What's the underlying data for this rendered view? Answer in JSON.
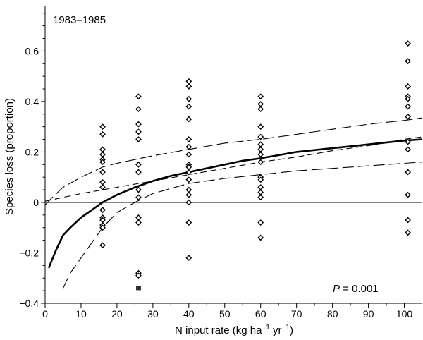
{
  "chart_data": {
    "type": "scatter",
    "title": "",
    "panel_label": "1983–1985",
    "xlabel": "N input rate (kg ha",
    "xlabel_sup1": "−1",
    "xlabel_mid": " yr",
    "xlabel_sup2": "−1",
    "xlabel_end": ")",
    "ylabel": "Species loss (proportion)",
    "xlim": [
      0,
      105
    ],
    "ylim": [
      -0.4,
      0.78
    ],
    "x_ticks": [
      0,
      10,
      20,
      30,
      40,
      50,
      60,
      70,
      80,
      90,
      100
    ],
    "y_ticks": [
      -0.4,
      -0.2,
      0,
      0.2,
      0.4,
      0.6
    ],
    "y_tick_labels": [
      "−0.4",
      "−0.2",
      "0",
      "0.2",
      "0.4",
      "0.6"
    ],
    "zero_line": true,
    "annotation": {
      "label": "P",
      "text": " = 0.001"
    },
    "series": [
      {
        "marker": "diamond",
        "points": [
          [
            16,
            0.3
          ],
          [
            16,
            0.27
          ],
          [
            16,
            0.21
          ],
          [
            16,
            0.19
          ],
          [
            16,
            0.17
          ],
          [
            16,
            0.16
          ],
          [
            16,
            0.12
          ],
          [
            16,
            0.08
          ],
          [
            16,
            0.06
          ],
          [
            16,
            -0.03
          ],
          [
            16,
            -0.06
          ],
          [
            16,
            -0.07
          ],
          [
            16,
            -0.09
          ],
          [
            16,
            -0.1
          ],
          [
            16,
            -0.17
          ],
          [
            26,
            0.42
          ],
          [
            26,
            0.37
          ],
          [
            26,
            0.31
          ],
          [
            26,
            0.28
          ],
          [
            26,
            0.25
          ],
          [
            26,
            0.15
          ],
          [
            26,
            0.12
          ],
          [
            26,
            0.05
          ],
          [
            26,
            0.02
          ],
          [
            26,
            -0.06
          ],
          [
            26,
            -0.08
          ],
          [
            26,
            -0.28
          ],
          [
            26,
            -0.29
          ],
          [
            40,
            0.48
          ],
          [
            40,
            0.46
          ],
          [
            40,
            0.41
          ],
          [
            40,
            0.38
          ],
          [
            40,
            0.33
          ],
          [
            40,
            0.25
          ],
          [
            40,
            0.22
          ],
          [
            40,
            0.19
          ],
          [
            40,
            0.15
          ],
          [
            40,
            0.14
          ],
          [
            40,
            0.12
          ],
          [
            40,
            0.09
          ],
          [
            40,
            0.05
          ],
          [
            40,
            0.03
          ],
          [
            40,
            0.0
          ],
          [
            40,
            -0.08
          ],
          [
            40,
            -0.22
          ],
          [
            60,
            0.42
          ],
          [
            60,
            0.39
          ],
          [
            60,
            0.37
          ],
          [
            60,
            0.3
          ],
          [
            60,
            0.26
          ],
          [
            60,
            0.23
          ],
          [
            60,
            0.21
          ],
          [
            60,
            0.19
          ],
          [
            60,
            0.16
          ],
          [
            60,
            0.1
          ],
          [
            60,
            0.09
          ],
          [
            60,
            0.06
          ],
          [
            60,
            0.04
          ],
          [
            60,
            0.02
          ],
          [
            60,
            -0.08
          ],
          [
            60,
            -0.14
          ],
          [
            101,
            0.63
          ],
          [
            101,
            0.56
          ],
          [
            101,
            0.46
          ],
          [
            101,
            0.42
          ],
          [
            101,
            0.41
          ],
          [
            101,
            0.38
          ],
          [
            101,
            0.34
          ],
          [
            101,
            0.24
          ],
          [
            101,
            0.21
          ],
          [
            101,
            0.12
          ],
          [
            101,
            0.03
          ],
          [
            101,
            -0.07
          ],
          [
            101,
            -0.12
          ]
        ]
      },
      {
        "marker": "square",
        "points": [
          [
            26,
            -0.34
          ]
        ]
      }
    ],
    "curves": [
      {
        "style": "solid",
        "points": [
          [
            1,
            -0.26
          ],
          [
            3,
            -0.19
          ],
          [
            5,
            -0.13
          ],
          [
            7,
            -0.1
          ],
          [
            10,
            -0.06
          ],
          [
            13,
            -0.03
          ],
          [
            16,
            0.0
          ],
          [
            20,
            0.03
          ],
          [
            25,
            0.06
          ],
          [
            30,
            0.085
          ],
          [
            35,
            0.105
          ],
          [
            40,
            0.12
          ],
          [
            45,
            0.135
          ],
          [
            50,
            0.15
          ],
          [
            55,
            0.165
          ],
          [
            60,
            0.175
          ],
          [
            70,
            0.2
          ],
          [
            80,
            0.215
          ],
          [
            90,
            0.23
          ],
          [
            100,
            0.245
          ],
          [
            105,
            0.25
          ]
        ]
      },
      {
        "style": "long-dash",
        "points": [
          [
            0,
            -0.01
          ],
          [
            2,
            0.02
          ],
          [
            5,
            0.06
          ],
          [
            10,
            0.1
          ],
          [
            16,
            0.14
          ],
          [
            20,
            0.155
          ],
          [
            30,
            0.185
          ],
          [
            40,
            0.21
          ],
          [
            50,
            0.235
          ],
          [
            60,
            0.25
          ],
          [
            70,
            0.27
          ],
          [
            80,
            0.29
          ],
          [
            90,
            0.31
          ],
          [
            100,
            0.325
          ],
          [
            105,
            0.335
          ]
        ]
      },
      {
        "style": "long-dash",
        "points": [
          [
            5,
            -0.34
          ],
          [
            7,
            -0.28
          ],
          [
            10,
            -0.22
          ],
          [
            13,
            -0.16
          ],
          [
            16,
            -0.1
          ],
          [
            20,
            -0.04
          ],
          [
            25,
            0.0
          ],
          [
            30,
            0.035
          ],
          [
            35,
            0.055
          ],
          [
            40,
            0.075
          ],
          [
            50,
            0.095
          ],
          [
            60,
            0.11
          ],
          [
            70,
            0.125
          ],
          [
            80,
            0.135
          ],
          [
            90,
            0.145
          ],
          [
            100,
            0.155
          ],
          [
            105,
            0.16
          ]
        ]
      },
      {
        "style": "short-dash",
        "points": [
          [
            0,
            0.005
          ],
          [
            5,
            0.02
          ],
          [
            10,
            0.035
          ],
          [
            20,
            0.06
          ],
          [
            30,
            0.085
          ],
          [
            40,
            0.11
          ],
          [
            50,
            0.135
          ],
          [
            60,
            0.16
          ],
          [
            70,
            0.18
          ],
          [
            80,
            0.205
          ],
          [
            90,
            0.225
          ],
          [
            100,
            0.25
          ],
          [
            105,
            0.26
          ]
        ]
      }
    ]
  }
}
